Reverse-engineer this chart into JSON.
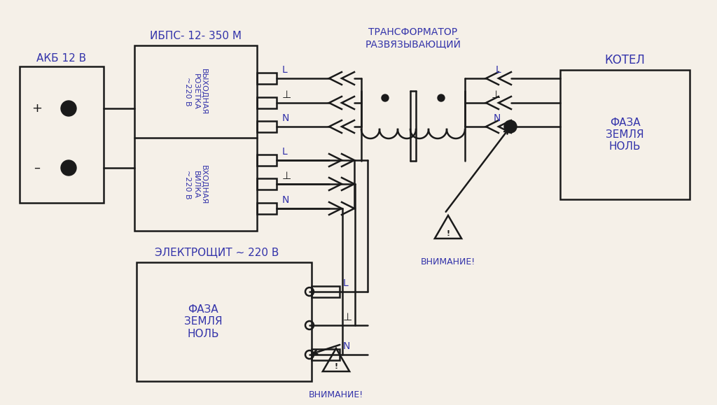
{
  "bg_color": "#f5f0e8",
  "line_color": "#1a1a1a",
  "text_color": "#3333aa",
  "labels": {
    "akb": "АКБ 12 В",
    "ibps": "ИБПС- 12- 350 М",
    "transformer": "ТРАНСФОРМАТОР\nРАЗВЯЗЫВАЮЩИЙ",
    "kotel": "КОТЕЛ",
    "output_socket": "ВЫХОДНАЯ\nРОЗЕТКА\n~220 В",
    "input_fork": "ВХОДНАЯ\nВИЛКА\n~220 В",
    "electroshit": "ЭЛЕКТРОЩИТ ~ 220 В",
    "faza_zemlya_nol_kotel": "ФАЗА\nЗЕМЛЯ\nНОЛЬ",
    "faza_zemlya_nol_es": "ФАЗА\nЗЕМЛЯ\nНОЛЬ",
    "vnimanie1": "ВНИМАНИЕ!",
    "vnimanie2": "ВНИМАНИЕ!"
  }
}
